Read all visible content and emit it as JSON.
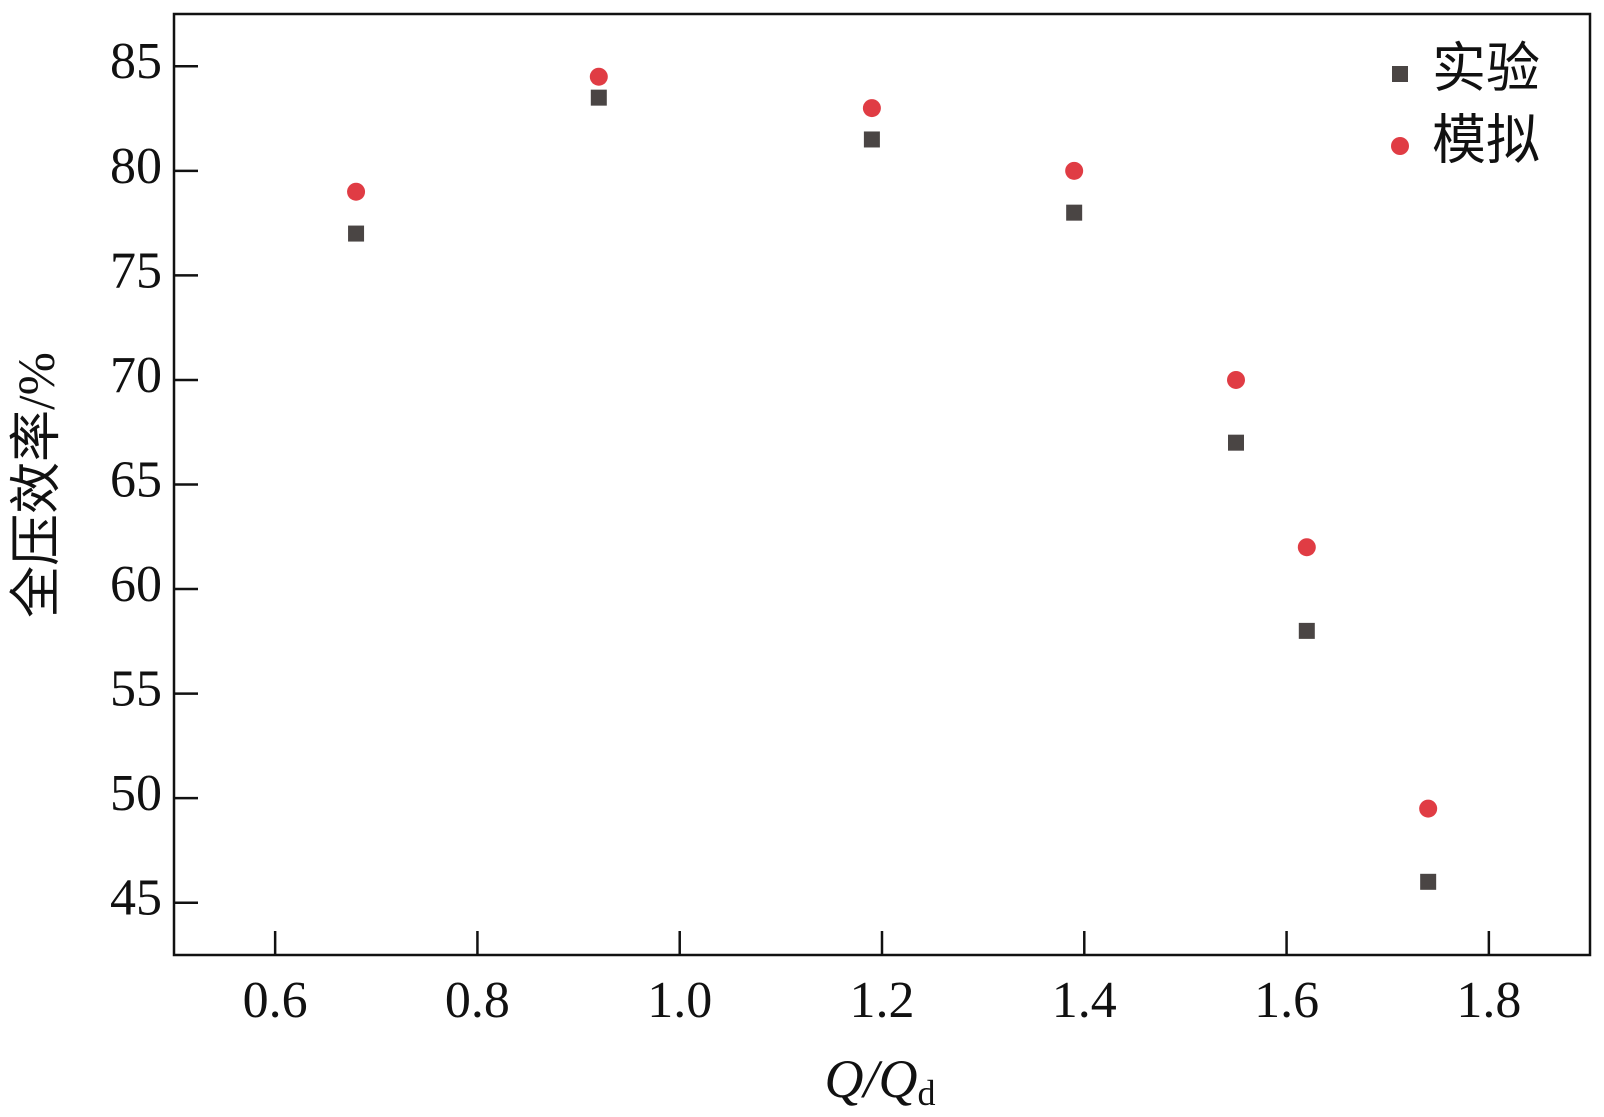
{
  "chart_data": {
    "type": "scatter",
    "xlabel": [
      "Q/Q",
      "d"
    ],
    "ylabel": "全压效率/%",
    "xlim": [
      0.5,
      1.9
    ],
    "ylim": [
      42.5,
      87.5
    ],
    "xticks": [
      0.6,
      0.8,
      {
        "value": 1,
        "label": "1.0"
      },
      1.2,
      1.4,
      1.6,
      1.8
    ],
    "yticks": [
      45,
      50,
      55,
      60,
      65,
      70,
      75,
      80,
      85
    ],
    "legend": "upper right",
    "series": [
      {
        "name": "实验",
        "color": "#4a4544",
        "marker": "square",
        "x": [
          0.68,
          0.92,
          1.19,
          1.39,
          1.55,
          1.62,
          1.74
        ],
        "values": [
          77,
          83.5,
          81.5,
          78,
          67,
          58,
          46
        ]
      },
      {
        "name": "模拟",
        "color": "#e03c44",
        "marker": "circle",
        "x": [
          0.68,
          0.92,
          1.19,
          1.39,
          1.55,
          1.62,
          1.74
        ],
        "values": [
          79,
          84.5,
          83,
          80,
          70,
          62,
          49.5
        ]
      }
    ]
  }
}
